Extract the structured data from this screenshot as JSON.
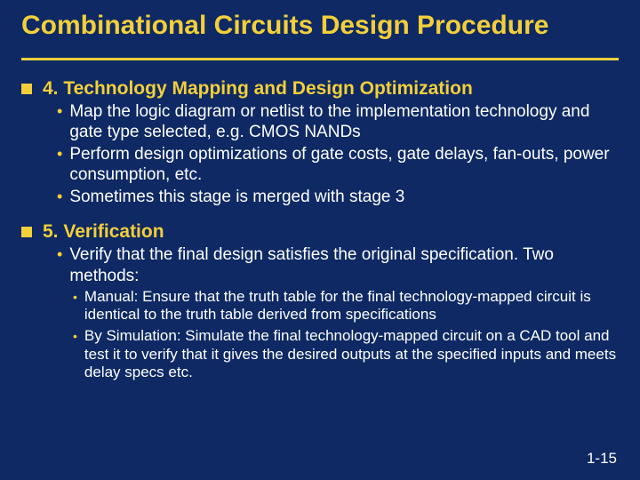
{
  "colors": {
    "background": "#0e2963",
    "accent": "#f3cf3a",
    "body_text": "#ffffff"
  },
  "typography": {
    "title_fontsize_pt": 30,
    "section_heading_fontsize_pt": 21,
    "body_fontsize_pt": 19,
    "sub_fontsize_pt": 17,
    "font_family": "Arial"
  },
  "title": "Combinational Circuits Design Procedure",
  "sections": [
    {
      "heading": "4. Technology Mapping and Design Optimization",
      "points": [
        {
          "text": "Map the logic diagram or netlist to the implementation technology and gate type selected, e.g. CMOS NANDs"
        },
        {
          "text": "Perform design optimizations of gate costs, gate delays, fan-outs, power consumption, etc."
        },
        {
          "text": "Sometimes this stage is merged with stage 3"
        }
      ]
    },
    {
      "heading": "5. Verification",
      "points": [
        {
          "text": "Verify that the final design satisfies the original specification. Two methods:",
          "subpoints": [
            "Manual: Ensure that the truth table for the final technology-mapped circuit is identical to the truth table derived from specifications",
            "By Simulation: Simulate the final technology-mapped circuit on a CAD tool and test it to verify that it gives the desired outputs at the specified inputs and meets delay specs etc."
          ]
        }
      ]
    }
  ],
  "page_number": "1-15"
}
